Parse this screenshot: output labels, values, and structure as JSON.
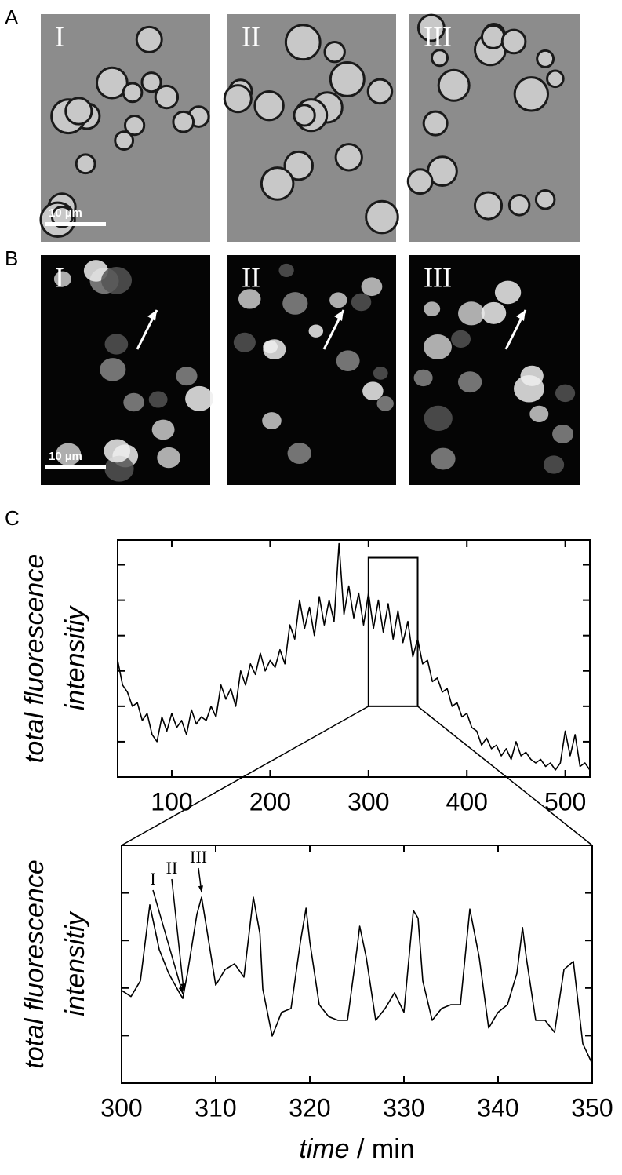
{
  "figure": {
    "panels": [
      {
        "label": "A",
        "images": [
          {
            "label": "I",
            "scale_bar": "10 µm"
          },
          {
            "label": "II"
          },
          {
            "label": "III"
          }
        ]
      },
      {
        "label": "B",
        "images": [
          {
            "label": "I",
            "scale_bar": "10 µm"
          },
          {
            "label": "II"
          },
          {
            "label": "III"
          }
        ]
      },
      {
        "label": "C"
      }
    ]
  },
  "chart_data": [
    {
      "type": "line",
      "color": "#000000",
      "y_label": [
        "total fluorescence",
        "intensitiy"
      ],
      "x": [
        45,
        50,
        55,
        60,
        65,
        70,
        75,
        80,
        85,
        90,
        95,
        100,
        105,
        110,
        115,
        120,
        125,
        130,
        135,
        140,
        145,
        150,
        155,
        160,
        165,
        170,
        175,
        180,
        185,
        190,
        195,
        200,
        205,
        210,
        215,
        220,
        225,
        230,
        235,
        240,
        245,
        250,
        255,
        260,
        265,
        270,
        275,
        280,
        285,
        290,
        295,
        300,
        305,
        310,
        315,
        320,
        325,
        330,
        335,
        340,
        345,
        350,
        355,
        360,
        365,
        370,
        375,
        380,
        385,
        390,
        395,
        400,
        405,
        410,
        415,
        420,
        425,
        430,
        435,
        440,
        445,
        450,
        455,
        460,
        465,
        470,
        475,
        480,
        485,
        490,
        495,
        500,
        505,
        510,
        515,
        520,
        525
      ],
      "values": [
        3.3,
        2.6,
        2.4,
        2.0,
        2.1,
        1.6,
        1.8,
        1.2,
        1.0,
        1.7,
        1.3,
        1.8,
        1.4,
        1.6,
        1.2,
        1.9,
        1.5,
        1.7,
        1.6,
        2.0,
        1.7,
        2.6,
        2.2,
        2.5,
        2.0,
        3.0,
        2.6,
        3.2,
        2.9,
        3.5,
        3.0,
        3.3,
        3.1,
        3.6,
        3.2,
        4.3,
        3.9,
        5.0,
        4.2,
        4.8,
        4.0,
        5.1,
        4.3,
        5.0,
        4.4,
        6.6,
        4.6,
        5.4,
        4.5,
        5.2,
        4.3,
        5.2,
        4.2,
        5.0,
        4.1,
        4.9,
        3.9,
        4.7,
        3.8,
        4.4,
        3.4,
        3.9,
        3.2,
        3.3,
        2.7,
        2.8,
        2.4,
        2.5,
        2.0,
        2.1,
        1.7,
        1.8,
        1.4,
        1.3,
        0.9,
        1.1,
        0.8,
        0.9,
        0.6,
        0.8,
        0.5,
        1.0,
        0.6,
        0.7,
        0.5,
        0.4,
        0.5,
        0.3,
        0.4,
        0.2,
        0.4,
        1.3,
        0.6,
        1.2,
        0.3,
        0.4,
        0.2
      ],
      "xlim": [
        45,
        525
      ],
      "xticks": [
        100,
        200,
        300,
        400,
        500
      ],
      "ylim": [
        0,
        6.7
      ],
      "yticks": [
        1,
        2,
        3,
        4,
        5,
        6
      ],
      "y_tick_labels": false,
      "zoom_box": {
        "xlim": [
          300,
          350
        ],
        "ylim": [
          2.0,
          6.2
        ]
      }
    },
    {
      "type": "line",
      "color": "#000000",
      "y_label": [
        "total fluorescence",
        "intensitiy"
      ],
      "x_label": {
        "italic": "time",
        "unit": "/ min"
      },
      "x": [
        300,
        301,
        302,
        303,
        304,
        305,
        306,
        306.5,
        307,
        308,
        308.5,
        309,
        310,
        311,
        312,
        313,
        314,
        314.7,
        315,
        316,
        317,
        318,
        319,
        319.6,
        320,
        321,
        322,
        323,
        324,
        325,
        325.3,
        326,
        327,
        328,
        329,
        330,
        331,
        331.5,
        332,
        333,
        334,
        335,
        336,
        337,
        338,
        339,
        340,
        341,
        342,
        342.6,
        343,
        344,
        345,
        346,
        347,
        348,
        349,
        350
      ],
      "values": [
        1.95,
        1.82,
        2.15,
        3.75,
        2.81,
        2.31,
        1.95,
        1.78,
        2.31,
        3.55,
        3.91,
        3.3,
        2.06,
        2.39,
        2.51,
        2.23,
        3.91,
        3.14,
        1.98,
        0.99,
        1.49,
        1.57,
        2.97,
        3.68,
        2.97,
        1.65,
        1.4,
        1.32,
        1.32,
        2.81,
        3.3,
        2.64,
        1.32,
        1.57,
        1.9,
        1.49,
        3.63,
        3.47,
        2.15,
        1.32,
        1.57,
        1.65,
        1.65,
        3.66,
        2.64,
        1.16,
        1.49,
        1.65,
        2.31,
        3.27,
        2.64,
        1.32,
        1.32,
        1.07,
        2.39,
        2.56,
        0.83,
        0.41
      ],
      "xlim": [
        300,
        350
      ],
      "xticks": [
        300,
        310,
        320,
        330,
        340,
        350
      ],
      "ylim": [
        0,
        5
      ],
      "yticks": [
        1,
        2,
        3,
        4
      ],
      "y_tick_labels": false,
      "annotations": [
        {
          "text": "I",
          "x": 306.5,
          "y": 1.78
        },
        {
          "text": "II",
          "x": 306.6,
          "y": 1.85
        },
        {
          "text": "III",
          "x": 308.5,
          "y": 3.91
        }
      ]
    }
  ]
}
